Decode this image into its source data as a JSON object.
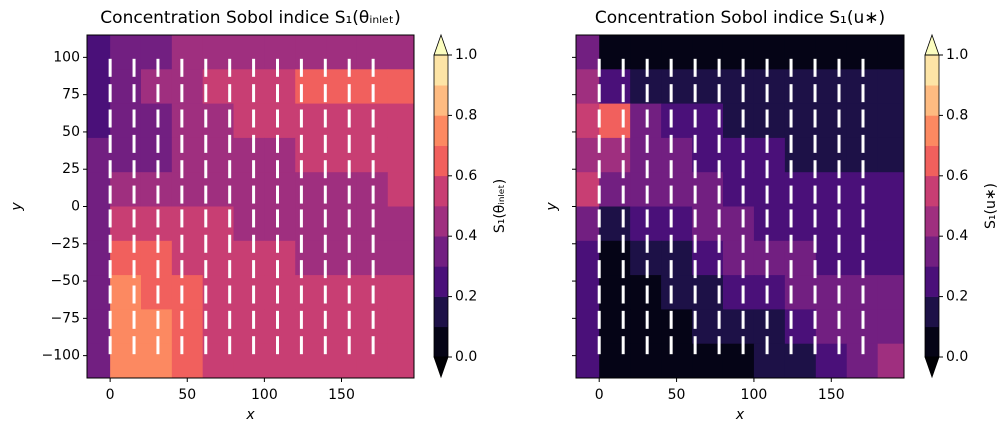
{
  "chart_data": [
    {
      "type": "contour",
      "title": "Concentration Sobol indice S₁(θᵢₙₗₑₜ)",
      "xlabel": "x",
      "ylabel": "y",
      "colorbar_label": "S₁(θᵢₙₗₑₜ)",
      "xlim": [
        -15,
        197
      ],
      "ylim": [
        -115,
        115
      ],
      "xticks": [
        0,
        50,
        100,
        150
      ],
      "yticks": [
        {
          "value": -100,
          "label": "−100"
        },
        {
          "value": -75,
          "label": "−75"
        },
        {
          "value": -50,
          "label": "−50"
        },
        {
          "value": -25,
          "label": "−25"
        },
        0,
        25,
        50,
        75,
        100
      ],
      "show_ytick_labels": true,
      "x_edges": [
        -15,
        0,
        20,
        40,
        60,
        80,
        100,
        120,
        140,
        160,
        180,
        197
      ],
      "y_edges": [
        115,
        92,
        69,
        46,
        23,
        0,
        -23,
        -46,
        -69,
        -92,
        -115
      ],
      "z": [
        [
          0.25,
          0.35,
          0.35,
          0.4,
          0.4,
          0.4,
          0.45,
          0.45,
          0.45,
          0.45,
          0.45
        ],
        [
          0.25,
          0.35,
          0.45,
          0.45,
          0.5,
          0.55,
          0.55,
          0.6,
          0.6,
          0.65,
          0.65
        ],
        [
          0.25,
          0.3,
          0.35,
          0.4,
          0.45,
          0.5,
          0.5,
          0.55,
          0.55,
          0.55,
          0.55
        ],
        [
          0.3,
          0.35,
          0.35,
          0.4,
          0.4,
          0.45,
          0.45,
          0.5,
          0.5,
          0.5,
          0.5
        ],
        [
          0.3,
          0.45,
          0.45,
          0.45,
          0.45,
          0.45,
          0.45,
          0.45,
          0.45,
          0.45,
          0.5
        ],
        [
          0.3,
          0.55,
          0.5,
          0.5,
          0.5,
          0.45,
          0.45,
          0.45,
          0.45,
          0.45,
          0.45
        ],
        [
          0.3,
          0.65,
          0.6,
          0.55,
          0.5,
          0.5,
          0.5,
          0.45,
          0.45,
          0.45,
          0.45
        ],
        [
          0.3,
          0.7,
          0.65,
          0.6,
          0.55,
          0.5,
          0.5,
          0.5,
          0.5,
          0.5,
          0.5
        ],
        [
          0.35,
          0.75,
          0.7,
          0.6,
          0.55,
          0.55,
          0.5,
          0.5,
          0.5,
          0.5,
          0.5
        ],
        [
          0.35,
          0.75,
          0.7,
          0.6,
          0.55,
          0.55,
          0.5,
          0.5,
          0.5,
          0.5,
          0.5
        ]
      ],
      "levels": [
        0,
        0.1,
        0.2,
        0.3,
        0.4,
        0.5,
        0.6,
        0.7,
        0.8,
        0.9,
        1.0
      ],
      "colors": [
        "#050416",
        "#1d1147",
        "#4a1079",
        "#721f81",
        "#9f2f7f",
        "#c83e73",
        "#f1605d",
        "#fc8961",
        "#febb81",
        "#fde4a6"
      ],
      "under_color": "#000004",
      "over_color": "#fcfdbf",
      "cbar_ticks": [
        {
          "value": 0,
          "label": "0.0"
        },
        0.2,
        0.4,
        0.6,
        0.8,
        {
          "value": 1.0,
          "label": "1.0"
        }
      ],
      "marker_x": [
        0,
        15.5,
        31,
        46.5,
        62,
        77.5,
        93,
        108.5,
        124,
        139.5,
        155,
        170.5
      ],
      "marker_y": [
        93,
        76,
        59,
        42,
        25,
        8,
        -8,
        -25,
        -42,
        -59,
        -76,
        -93
      ],
      "marker_color": "#ffffff"
    },
    {
      "type": "contour",
      "title": "Concentration Sobol indice S₁(u∗)",
      "xlabel": "x",
      "ylabel": "y",
      "colorbar_label": "S₁(u∗)",
      "xlim": [
        -15,
        197
      ],
      "ylim": [
        -115,
        115
      ],
      "xticks": [
        0,
        50,
        100,
        150
      ],
      "yticks": [
        -100,
        -75,
        -50,
        -25,
        0,
        25,
        50,
        75,
        100
      ],
      "show_ytick_labels": false,
      "x_edges": [
        -15,
        0,
        20,
        40,
        60,
        80,
        100,
        120,
        140,
        160,
        180,
        197
      ],
      "y_edges": [
        115,
        92,
        69,
        46,
        23,
        0,
        -23,
        -46,
        -69,
        -92,
        -115
      ],
      "z": [
        [
          0.3,
          0.05,
          0.05,
          0.05,
          0.05,
          0.05,
          0.05,
          0.05,
          0.05,
          0.05,
          0.05
        ],
        [
          0.4,
          0.25,
          0.15,
          0.1,
          0.1,
          0.1,
          0.1,
          0.1,
          0.1,
          0.1,
          0.1
        ],
        [
          0.5,
          0.65,
          0.35,
          0.25,
          0.2,
          0.15,
          0.15,
          0.15,
          0.15,
          0.15,
          0.15
        ],
        [
          0.4,
          0.45,
          0.35,
          0.3,
          0.25,
          0.2,
          0.2,
          0.15,
          0.15,
          0.15,
          0.15
        ],
        [
          0.5,
          0.3,
          0.3,
          0.3,
          0.3,
          0.25,
          0.25,
          0.2,
          0.2,
          0.2,
          0.2
        ],
        [
          0.3,
          0.1,
          0.2,
          0.25,
          0.3,
          0.3,
          0.25,
          0.25,
          0.25,
          0.25,
          0.25
        ],
        [
          0.25,
          0.05,
          0.1,
          0.15,
          0.25,
          0.3,
          0.3,
          0.3,
          0.25,
          0.25,
          0.25
        ],
        [
          0.2,
          0.05,
          0.05,
          0.1,
          0.15,
          0.2,
          0.25,
          0.3,
          0.3,
          0.3,
          0.3
        ],
        [
          0.2,
          0.05,
          0.05,
          0.05,
          0.1,
          0.1,
          0.15,
          0.25,
          0.3,
          0.35,
          0.35
        ],
        [
          0.2,
          0.05,
          0.05,
          0.05,
          0.05,
          0.05,
          0.1,
          0.15,
          0.25,
          0.35,
          0.4
        ]
      ],
      "levels": [
        0,
        0.1,
        0.2,
        0.3,
        0.4,
        0.5,
        0.6,
        0.7,
        0.8,
        0.9,
        1.0
      ],
      "colors": [
        "#050416",
        "#1d1147",
        "#4a1079",
        "#721f81",
        "#9f2f7f",
        "#c83e73",
        "#f1605d",
        "#fc8961",
        "#febb81",
        "#fde4a6"
      ],
      "under_color": "#000004",
      "over_color": "#fcfdbf",
      "cbar_ticks": [
        {
          "value": 0,
          "label": "0.0"
        },
        0.2,
        0.4,
        0.6,
        0.8,
        {
          "value": 1.0,
          "label": "1.0"
        }
      ],
      "marker_x": [
        0,
        15.5,
        31,
        46.5,
        62,
        77.5,
        93,
        108.5,
        124,
        139.5,
        155,
        170.5
      ],
      "marker_y": [
        93,
        76,
        59,
        42,
        25,
        8,
        -8,
        -25,
        -42,
        -59,
        -76,
        -93
      ],
      "marker_color": "#ffffff"
    }
  ]
}
